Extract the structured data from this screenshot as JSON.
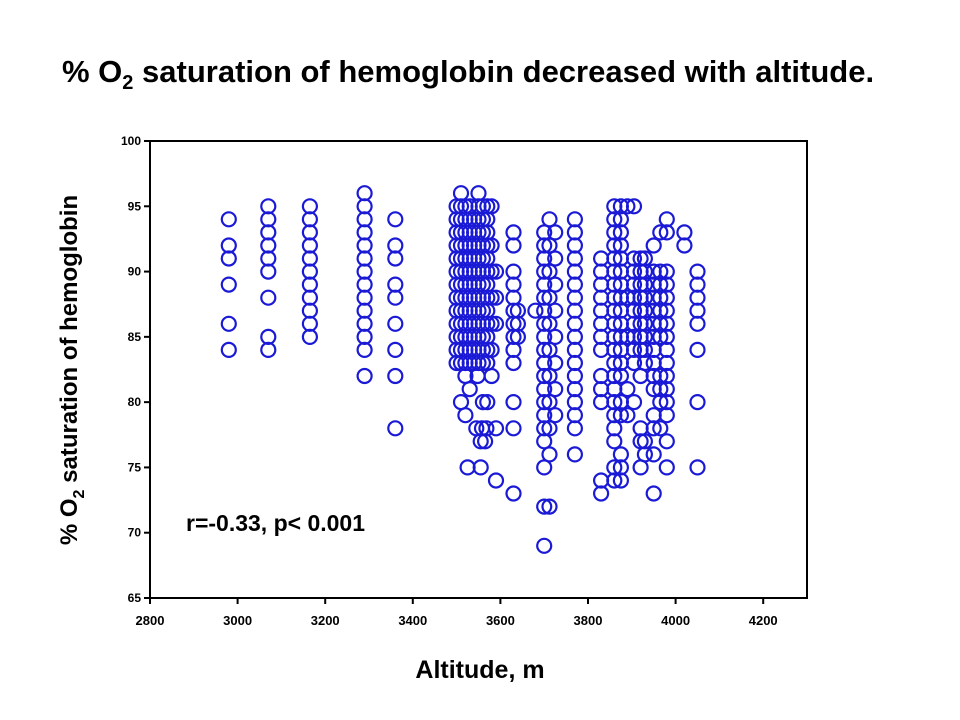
{
  "slide": {
    "title_prefix": "% O",
    "title_sub": "2",
    "title_suffix": " saturation of hemoglobin decreased with altitude."
  },
  "chart_data": {
    "type": "scatter",
    "xlabel": "Altitude, m",
    "ylabel_prefix": "% O",
    "ylabel_sub": "2",
    "ylabel_suffix": " saturation of hemoglobin",
    "annotation": "r=-0.33, p< 0.001",
    "xlim": [
      2800,
      4300
    ],
    "ylim": [
      65,
      100
    ],
    "xticks": [
      2800,
      3000,
      3200,
      3400,
      3600,
      3800,
      4000,
      4200
    ],
    "yticks": [
      65,
      70,
      75,
      80,
      85,
      90,
      95,
      100
    ],
    "grid": false,
    "marker": "open-circle",
    "colors": {
      "marker": "#1a1ad6",
      "axis": "#000000"
    },
    "points": [
      [
        2980,
        84
      ],
      [
        2980,
        86
      ],
      [
        2980,
        89
      ],
      [
        2980,
        91
      ],
      [
        2980,
        92
      ],
      [
        2980,
        94
      ],
      [
        3070,
        84
      ],
      [
        3070,
        85
      ],
      [
        3070,
        88
      ],
      [
        3070,
        90
      ],
      [
        3070,
        91
      ],
      [
        3070,
        92
      ],
      [
        3070,
        93
      ],
      [
        3070,
        94
      ],
      [
        3070,
        95
      ],
      [
        3165,
        85
      ],
      [
        3165,
        86
      ],
      [
        3165,
        87
      ],
      [
        3165,
        88
      ],
      [
        3165,
        89
      ],
      [
        3165,
        90
      ],
      [
        3165,
        91
      ],
      [
        3165,
        92
      ],
      [
        3165,
        93
      ],
      [
        3165,
        94
      ],
      [
        3165,
        95
      ],
      [
        3290,
        82
      ],
      [
        3290,
        84
      ],
      [
        3290,
        85
      ],
      [
        3290,
        86
      ],
      [
        3290,
        87
      ],
      [
        3290,
        88
      ],
      [
        3290,
        89
      ],
      [
        3290,
        90
      ],
      [
        3290,
        91
      ],
      [
        3290,
        92
      ],
      [
        3290,
        93
      ],
      [
        3290,
        94
      ],
      [
        3290,
        95
      ],
      [
        3290,
        96
      ],
      [
        3360,
        78
      ],
      [
        3360,
        82
      ],
      [
        3360,
        84
      ],
      [
        3360,
        86
      ],
      [
        3360,
        88
      ],
      [
        3360,
        89
      ],
      [
        3360,
        91
      ],
      [
        3360,
        92
      ],
      [
        3360,
        94
      ],
      [
        3500,
        83
      ],
      [
        3500,
        84
      ],
      [
        3500,
        85
      ],
      [
        3500,
        86
      ],
      [
        3500,
        87
      ],
      [
        3500,
        88
      ],
      [
        3500,
        89
      ],
      [
        3500,
        90
      ],
      [
        3500,
        91
      ],
      [
        3500,
        92
      ],
      [
        3500,
        93
      ],
      [
        3500,
        94
      ],
      [
        3500,
        95
      ],
      [
        3510,
        80
      ],
      [
        3510,
        83
      ],
      [
        3510,
        84
      ],
      [
        3510,
        85
      ],
      [
        3510,
        86
      ],
      [
        3510,
        87
      ],
      [
        3510,
        88
      ],
      [
        3510,
        89
      ],
      [
        3510,
        90
      ],
      [
        3510,
        91
      ],
      [
        3510,
        92
      ],
      [
        3510,
        93
      ],
      [
        3510,
        94
      ],
      [
        3510,
        95
      ],
      [
        3510,
        96
      ],
      [
        3520,
        79
      ],
      [
        3520,
        82
      ],
      [
        3520,
        83
      ],
      [
        3520,
        84
      ],
      [
        3520,
        85
      ],
      [
        3520,
        86
      ],
      [
        3520,
        87
      ],
      [
        3520,
        88
      ],
      [
        3520,
        89
      ],
      [
        3520,
        90
      ],
      [
        3520,
        91
      ],
      [
        3520,
        92
      ],
      [
        3520,
        93
      ],
      [
        3520,
        94
      ],
      [
        3520,
        95
      ],
      [
        3525,
        75
      ],
      [
        3530,
        81
      ],
      [
        3530,
        83
      ],
      [
        3530,
        84
      ],
      [
        3530,
        85
      ],
      [
        3530,
        86
      ],
      [
        3530,
        87
      ],
      [
        3530,
        88
      ],
      [
        3530,
        89
      ],
      [
        3530,
        90
      ],
      [
        3530,
        91
      ],
      [
        3530,
        92
      ],
      [
        3530,
        93
      ],
      [
        3530,
        94
      ],
      [
        3530,
        95
      ],
      [
        3540,
        83
      ],
      [
        3540,
        84
      ],
      [
        3540,
        85
      ],
      [
        3540,
        86
      ],
      [
        3540,
        87
      ],
      [
        3540,
        88
      ],
      [
        3540,
        89
      ],
      [
        3540,
        90
      ],
      [
        3540,
        91
      ],
      [
        3540,
        92
      ],
      [
        3540,
        93
      ],
      [
        3540,
        94
      ],
      [
        3545,
        78
      ],
      [
        3548,
        82
      ],
      [
        3550,
        83
      ],
      [
        3550,
        84
      ],
      [
        3550,
        85
      ],
      [
        3550,
        86
      ],
      [
        3550,
        87
      ],
      [
        3550,
        88
      ],
      [
        3550,
        89
      ],
      [
        3550,
        90
      ],
      [
        3550,
        91
      ],
      [
        3550,
        92
      ],
      [
        3550,
        93
      ],
      [
        3550,
        94
      ],
      [
        3550,
        95
      ],
      [
        3550,
        96
      ],
      [
        3555,
        75
      ],
      [
        3555,
        77
      ],
      [
        3558,
        78
      ],
      [
        3560,
        80
      ],
      [
        3560,
        83
      ],
      [
        3560,
        84
      ],
      [
        3560,
        85
      ],
      [
        3560,
        86
      ],
      [
        3560,
        87
      ],
      [
        3560,
        88
      ],
      [
        3560,
        89
      ],
      [
        3560,
        90
      ],
      [
        3560,
        91
      ],
      [
        3560,
        92
      ],
      [
        3560,
        93
      ],
      [
        3560,
        94
      ],
      [
        3560,
        95
      ],
      [
        3565,
        77
      ],
      [
        3568,
        78
      ],
      [
        3570,
        80
      ],
      [
        3570,
        83
      ],
      [
        3570,
        84
      ],
      [
        3570,
        85
      ],
      [
        3570,
        86
      ],
      [
        3570,
        87
      ],
      [
        3570,
        88
      ],
      [
        3570,
        89
      ],
      [
        3570,
        90
      ],
      [
        3570,
        91
      ],
      [
        3570,
        92
      ],
      [
        3570,
        93
      ],
      [
        3570,
        94
      ],
      [
        3570,
        95
      ],
      [
        3580,
        82
      ],
      [
        3580,
        84
      ],
      [
        3580,
        86
      ],
      [
        3580,
        88
      ],
      [
        3580,
        90
      ],
      [
        3580,
        92
      ],
      [
        3580,
        95
      ],
      [
        3590,
        74
      ],
      [
        3590,
        78
      ],
      [
        3590,
        86
      ],
      [
        3590,
        88
      ],
      [
        3590,
        90
      ],
      [
        3630,
        73
      ],
      [
        3630,
        78
      ],
      [
        3630,
        80
      ],
      [
        3630,
        83
      ],
      [
        3630,
        84
      ],
      [
        3630,
        85
      ],
      [
        3630,
        86
      ],
      [
        3630,
        87
      ],
      [
        3630,
        88
      ],
      [
        3630,
        89
      ],
      [
        3630,
        90
      ],
      [
        3630,
        92
      ],
      [
        3630,
        93
      ],
      [
        3640,
        85
      ],
      [
        3640,
        86
      ],
      [
        3640,
        87
      ],
      [
        3680,
        87
      ],
      [
        3700,
        69
      ],
      [
        3700,
        72
      ],
      [
        3700,
        75
      ],
      [
        3700,
        77
      ],
      [
        3700,
        78
      ],
      [
        3700,
        79
      ],
      [
        3700,
        80
      ],
      [
        3700,
        81
      ],
      [
        3700,
        82
      ],
      [
        3700,
        83
      ],
      [
        3700,
        84
      ],
      [
        3700,
        85
      ],
      [
        3700,
        86
      ],
      [
        3700,
        87
      ],
      [
        3700,
        88
      ],
      [
        3700,
        89
      ],
      [
        3700,
        90
      ],
      [
        3700,
        91
      ],
      [
        3700,
        92
      ],
      [
        3700,
        93
      ],
      [
        3712,
        72
      ],
      [
        3712,
        76
      ],
      [
        3712,
        78
      ],
      [
        3712,
        80
      ],
      [
        3712,
        82
      ],
      [
        3712,
        84
      ],
      [
        3712,
        86
      ],
      [
        3712,
        88
      ],
      [
        3712,
        90
      ],
      [
        3712,
        92
      ],
      [
        3712,
        94
      ],
      [
        3725,
        79
      ],
      [
        3725,
        81
      ],
      [
        3725,
        83
      ],
      [
        3725,
        85
      ],
      [
        3725,
        87
      ],
      [
        3725,
        89
      ],
      [
        3725,
        91
      ],
      [
        3725,
        93
      ],
      [
        3770,
        76
      ],
      [
        3770,
        78
      ],
      [
        3770,
        79
      ],
      [
        3770,
        80
      ],
      [
        3770,
        81
      ],
      [
        3770,
        82
      ],
      [
        3770,
        83
      ],
      [
        3770,
        84
      ],
      [
        3770,
        85
      ],
      [
        3770,
        86
      ],
      [
        3770,
        87
      ],
      [
        3770,
        88
      ],
      [
        3770,
        89
      ],
      [
        3770,
        90
      ],
      [
        3770,
        91
      ],
      [
        3770,
        92
      ],
      [
        3770,
        93
      ],
      [
        3770,
        94
      ],
      [
        3830,
        73
      ],
      [
        3830,
        74
      ],
      [
        3830,
        80
      ],
      [
        3830,
        81
      ],
      [
        3830,
        82
      ],
      [
        3830,
        84
      ],
      [
        3830,
        85
      ],
      [
        3830,
        86
      ],
      [
        3830,
        87
      ],
      [
        3830,
        88
      ],
      [
        3830,
        89
      ],
      [
        3830,
        90
      ],
      [
        3830,
        91
      ],
      [
        3860,
        74
      ],
      [
        3860,
        75
      ],
      [
        3860,
        77
      ],
      [
        3860,
        78
      ],
      [
        3860,
        79
      ],
      [
        3860,
        80
      ],
      [
        3860,
        81
      ],
      [
        3860,
        82
      ],
      [
        3860,
        83
      ],
      [
        3860,
        84
      ],
      [
        3860,
        85
      ],
      [
        3860,
        86
      ],
      [
        3860,
        87
      ],
      [
        3860,
        88
      ],
      [
        3860,
        89
      ],
      [
        3860,
        90
      ],
      [
        3860,
        91
      ],
      [
        3860,
        92
      ],
      [
        3860,
        93
      ],
      [
        3860,
        94
      ],
      [
        3860,
        95
      ],
      [
        3875,
        74
      ],
      [
        3875,
        75
      ],
      [
        3875,
        76
      ],
      [
        3875,
        79
      ],
      [
        3875,
        80
      ],
      [
        3875,
        82
      ],
      [
        3875,
        83
      ],
      [
        3875,
        84
      ],
      [
        3875,
        85
      ],
      [
        3875,
        86
      ],
      [
        3875,
        87
      ],
      [
        3875,
        88
      ],
      [
        3875,
        89
      ],
      [
        3875,
        90
      ],
      [
        3875,
        91
      ],
      [
        3875,
        92
      ],
      [
        3875,
        93
      ],
      [
        3875,
        94
      ],
      [
        3875,
        95
      ],
      [
        3890,
        79
      ],
      [
        3890,
        81
      ],
      [
        3890,
        85
      ],
      [
        3890,
        88
      ],
      [
        3890,
        95
      ],
      [
        3905,
        80
      ],
      [
        3905,
        83
      ],
      [
        3905,
        84
      ],
      [
        3905,
        85
      ],
      [
        3905,
        86
      ],
      [
        3905,
        87
      ],
      [
        3905,
        88
      ],
      [
        3905,
        89
      ],
      [
        3905,
        90
      ],
      [
        3905,
        91
      ],
      [
        3905,
        95
      ],
      [
        3920,
        75
      ],
      [
        3920,
        77
      ],
      [
        3920,
        78
      ],
      [
        3920,
        82
      ],
      [
        3920,
        84
      ],
      [
        3920,
        85
      ],
      [
        3920,
        86
      ],
      [
        3920,
        87
      ],
      [
        3920,
        88
      ],
      [
        3920,
        89
      ],
      [
        3920,
        90
      ],
      [
        3920,
        91
      ],
      [
        3930,
        76
      ],
      [
        3930,
        77
      ],
      [
        3930,
        83
      ],
      [
        3930,
        84
      ],
      [
        3930,
        85
      ],
      [
        3930,
        86
      ],
      [
        3930,
        87
      ],
      [
        3930,
        88
      ],
      [
        3930,
        89
      ],
      [
        3930,
        90
      ],
      [
        3930,
        91
      ],
      [
        3950,
        73
      ],
      [
        3950,
        76
      ],
      [
        3950,
        78
      ],
      [
        3950,
        79
      ],
      [
        3950,
        81
      ],
      [
        3950,
        82
      ],
      [
        3950,
        83
      ],
      [
        3950,
        84
      ],
      [
        3950,
        85
      ],
      [
        3950,
        86
      ],
      [
        3950,
        87
      ],
      [
        3950,
        88
      ],
      [
        3950,
        89
      ],
      [
        3950,
        90
      ],
      [
        3950,
        92
      ],
      [
        3965,
        78
      ],
      [
        3965,
        80
      ],
      [
        3965,
        81
      ],
      [
        3965,
        82
      ],
      [
        3965,
        85
      ],
      [
        3965,
        86
      ],
      [
        3965,
        87
      ],
      [
        3965,
        88
      ],
      [
        3965,
        89
      ],
      [
        3965,
        90
      ],
      [
        3965,
        93
      ],
      [
        3980,
        75
      ],
      [
        3980,
        77
      ],
      [
        3980,
        79
      ],
      [
        3980,
        80
      ],
      [
        3980,
        81
      ],
      [
        3980,
        82
      ],
      [
        3980,
        83
      ],
      [
        3980,
        84
      ],
      [
        3980,
        85
      ],
      [
        3980,
        86
      ],
      [
        3980,
        87
      ],
      [
        3980,
        88
      ],
      [
        3980,
        89
      ],
      [
        3980,
        90
      ],
      [
        3980,
        93
      ],
      [
        3980,
        94
      ],
      [
        4020,
        92
      ],
      [
        4020,
        93
      ],
      [
        4050,
        75
      ],
      [
        4050,
        80
      ],
      [
        4050,
        84
      ],
      [
        4050,
        86
      ],
      [
        4050,
        87
      ],
      [
        4050,
        88
      ],
      [
        4050,
        89
      ],
      [
        4050,
        90
      ]
    ]
  }
}
